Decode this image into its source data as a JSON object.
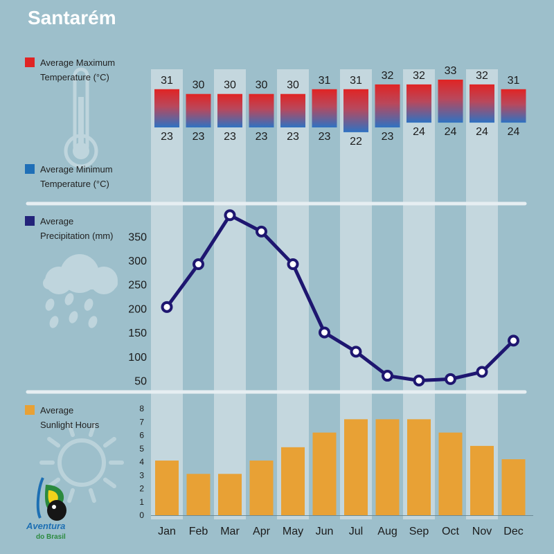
{
  "title": "Santarém",
  "legend": {
    "max_temp": {
      "label_line1": "Average Maximum",
      "label_line2": "Temperature (°C)",
      "color": "#e02424"
    },
    "min_temp": {
      "label_line1": "Average Minimum",
      "label_line2": "Temperature (°C)",
      "color": "#1f6fb7"
    },
    "precip": {
      "label_line1": "Average",
      "label_line2": "Precipitation (mm)",
      "color": "#23237a"
    },
    "sun": {
      "label_line1": "Average",
      "label_line2": "Sunlight Hours",
      "color": "#e8a135"
    }
  },
  "logo": {
    "line1": "Aventura",
    "line2": "do Brasil"
  },
  "icons": [
    "thermometer-icon",
    "rain-cloud-icon",
    "sun-icon",
    "parrot-logo-icon"
  ],
  "chart_data": [
    {
      "type": "bar",
      "name": "temperature",
      "categories": [
        "Jan",
        "Feb",
        "Mar",
        "Apr",
        "May",
        "Jun",
        "Jul",
        "Aug",
        "Sep",
        "Oct",
        "Nov",
        "Dec"
      ],
      "series": [
        {
          "name": "Average Maximum Temperature (°C)",
          "values": [
            31,
            30,
            30,
            30,
            30,
            31,
            31,
            32,
            32,
            33,
            32,
            31
          ]
        },
        {
          "name": "Average Minimum Temperature (°C)",
          "values": [
            23,
            23,
            23,
            23,
            23,
            23,
            22,
            23,
            24,
            24,
            24,
            24
          ]
        }
      ]
    },
    {
      "type": "line",
      "name": "precipitation",
      "categories": [
        "Jan",
        "Feb",
        "Mar",
        "Apr",
        "May",
        "Jun",
        "Jul",
        "Aug",
        "Sep",
        "Oct",
        "Nov",
        "Dec"
      ],
      "values": [
        203,
        292,
        394,
        360,
        292,
        150,
        110,
        60,
        50,
        53,
        68,
        133
      ],
      "yticks": [
        50,
        100,
        150,
        200,
        250,
        300,
        350
      ],
      "color": "#1e1670"
    },
    {
      "type": "bar",
      "name": "sunlight",
      "categories": [
        "Jan",
        "Feb",
        "Mar",
        "Apr",
        "May",
        "Jun",
        "Jul",
        "Aug",
        "Sep",
        "Oct",
        "Nov",
        "Dec"
      ],
      "values": [
        4.1,
        3.1,
        3.1,
        4.1,
        5.1,
        6.2,
        7.2,
        7.2,
        7.2,
        6.2,
        5.2,
        4.2
      ],
      "yticks": [
        0,
        1,
        2,
        3,
        4,
        5,
        6,
        7,
        8
      ],
      "color": "#e8a135"
    }
  ]
}
